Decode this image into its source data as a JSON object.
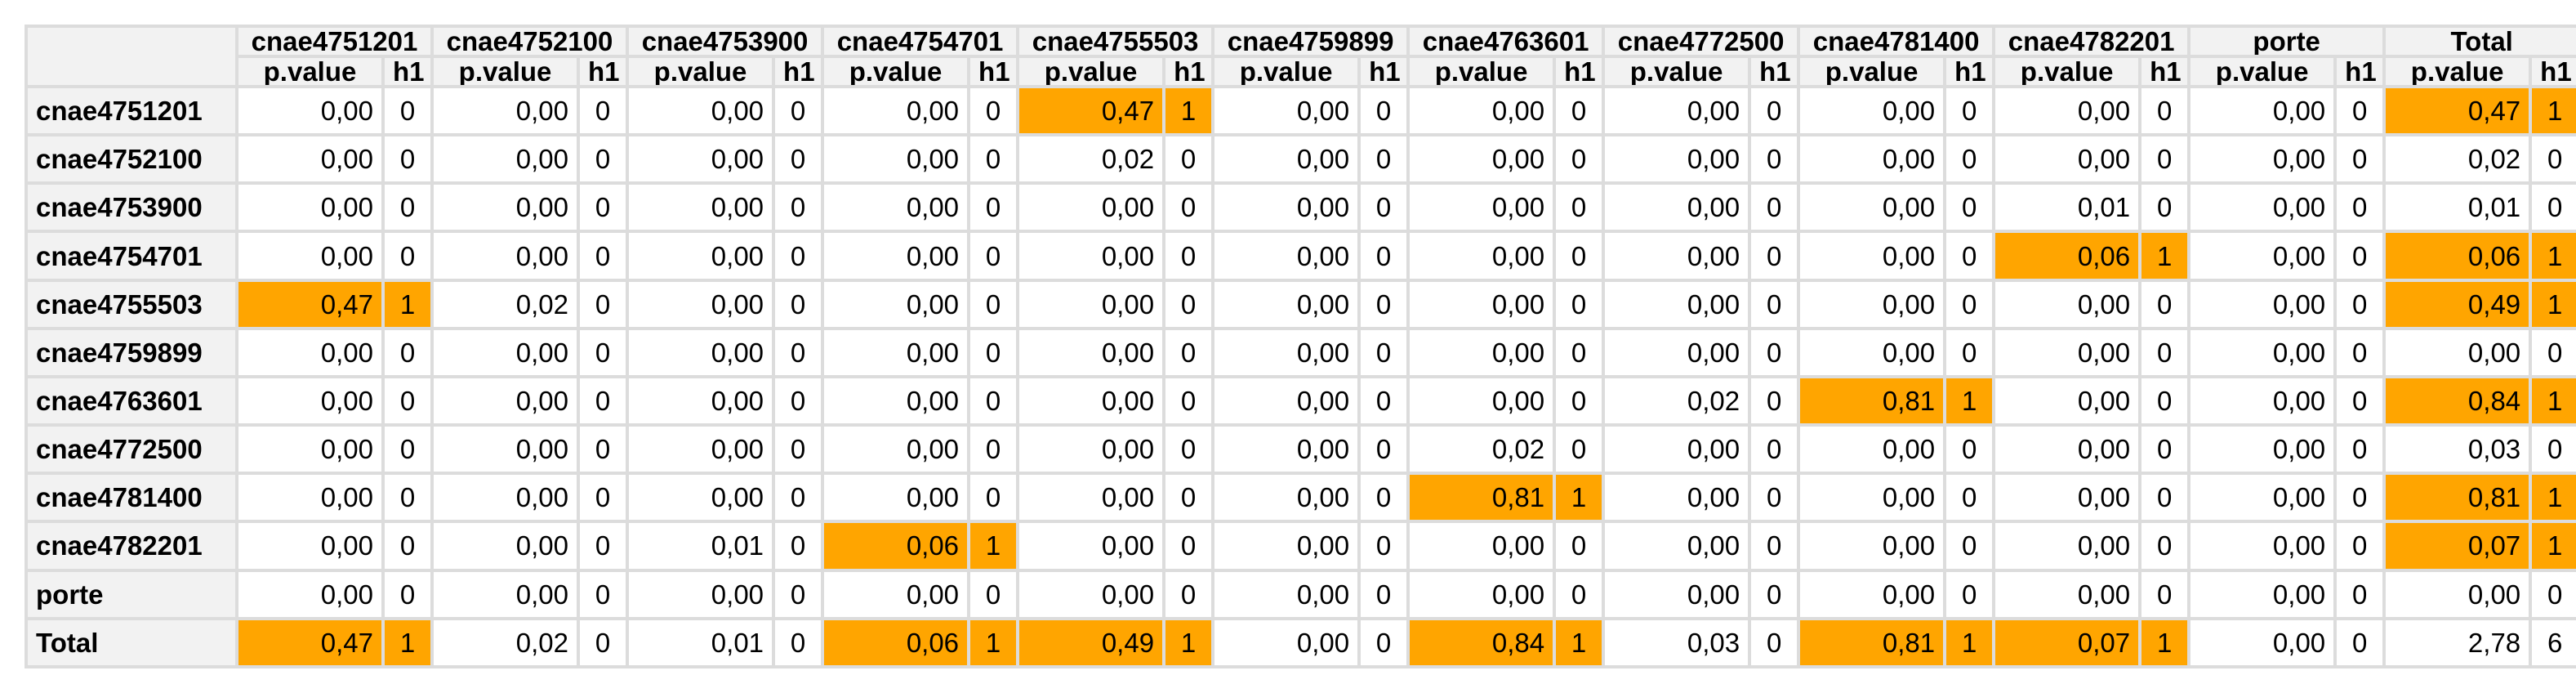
{
  "sub_headers": {
    "p": "p.value",
    "h": "h1"
  },
  "columns": [
    "cnae4751201",
    "cnae4752100",
    "cnae4753900",
    "cnae4754701",
    "cnae4755503",
    "cnae4759899",
    "cnae4763601",
    "cnae4772500",
    "cnae4781400",
    "cnae4782201",
    "porte",
    "Total"
  ],
  "highlight_color": "#ffa500",
  "header_bg": "#f2f2f2",
  "rows": [
    {
      "label": "cnae4751201",
      "cells": [
        [
          "0,00",
          "0"
        ],
        [
          "0,00",
          "0"
        ],
        [
          "0,00",
          "0"
        ],
        [
          "0,00",
          "0"
        ],
        [
          "0,47",
          "1"
        ],
        [
          "0,00",
          "0"
        ],
        [
          "0,00",
          "0"
        ],
        [
          "0,00",
          "0"
        ],
        [
          "0,00",
          "0"
        ],
        [
          "0,00",
          "0"
        ],
        [
          "0,00",
          "0"
        ],
        [
          "0,47",
          "1"
        ]
      ]
    },
    {
      "label": "cnae4752100",
      "cells": [
        [
          "0,00",
          "0"
        ],
        [
          "0,00",
          "0"
        ],
        [
          "0,00",
          "0"
        ],
        [
          "0,00",
          "0"
        ],
        [
          "0,02",
          "0"
        ],
        [
          "0,00",
          "0"
        ],
        [
          "0,00",
          "0"
        ],
        [
          "0,00",
          "0"
        ],
        [
          "0,00",
          "0"
        ],
        [
          "0,00",
          "0"
        ],
        [
          "0,00",
          "0"
        ],
        [
          "0,02",
          "0"
        ]
      ]
    },
    {
      "label": "cnae4753900",
      "cells": [
        [
          "0,00",
          "0"
        ],
        [
          "0,00",
          "0"
        ],
        [
          "0,00",
          "0"
        ],
        [
          "0,00",
          "0"
        ],
        [
          "0,00",
          "0"
        ],
        [
          "0,00",
          "0"
        ],
        [
          "0,00",
          "0"
        ],
        [
          "0,00",
          "0"
        ],
        [
          "0,00",
          "0"
        ],
        [
          "0,01",
          "0"
        ],
        [
          "0,00",
          "0"
        ],
        [
          "0,01",
          "0"
        ]
      ]
    },
    {
      "label": "cnae4754701",
      "cells": [
        [
          "0,00",
          "0"
        ],
        [
          "0,00",
          "0"
        ],
        [
          "0,00",
          "0"
        ],
        [
          "0,00",
          "0"
        ],
        [
          "0,00",
          "0"
        ],
        [
          "0,00",
          "0"
        ],
        [
          "0,00",
          "0"
        ],
        [
          "0,00",
          "0"
        ],
        [
          "0,00",
          "0"
        ],
        [
          "0,06",
          "1"
        ],
        [
          "0,00",
          "0"
        ],
        [
          "0,06",
          "1"
        ]
      ]
    },
    {
      "label": "cnae4755503",
      "cells": [
        [
          "0,47",
          "1"
        ],
        [
          "0,02",
          "0"
        ],
        [
          "0,00",
          "0"
        ],
        [
          "0,00",
          "0"
        ],
        [
          "0,00",
          "0"
        ],
        [
          "0,00",
          "0"
        ],
        [
          "0,00",
          "0"
        ],
        [
          "0,00",
          "0"
        ],
        [
          "0,00",
          "0"
        ],
        [
          "0,00",
          "0"
        ],
        [
          "0,00",
          "0"
        ],
        [
          "0,49",
          "1"
        ]
      ]
    },
    {
      "label": "cnae4759899",
      "cells": [
        [
          "0,00",
          "0"
        ],
        [
          "0,00",
          "0"
        ],
        [
          "0,00",
          "0"
        ],
        [
          "0,00",
          "0"
        ],
        [
          "0,00",
          "0"
        ],
        [
          "0,00",
          "0"
        ],
        [
          "0,00",
          "0"
        ],
        [
          "0,00",
          "0"
        ],
        [
          "0,00",
          "0"
        ],
        [
          "0,00",
          "0"
        ],
        [
          "0,00",
          "0"
        ],
        [
          "0,00",
          "0"
        ]
      ]
    },
    {
      "label": "cnae4763601",
      "cells": [
        [
          "0,00",
          "0"
        ],
        [
          "0,00",
          "0"
        ],
        [
          "0,00",
          "0"
        ],
        [
          "0,00",
          "0"
        ],
        [
          "0,00",
          "0"
        ],
        [
          "0,00",
          "0"
        ],
        [
          "0,00",
          "0"
        ],
        [
          "0,02",
          "0"
        ],
        [
          "0,81",
          "1"
        ],
        [
          "0,00",
          "0"
        ],
        [
          "0,00",
          "0"
        ],
        [
          "0,84",
          "1"
        ]
      ]
    },
    {
      "label": "cnae4772500",
      "cells": [
        [
          "0,00",
          "0"
        ],
        [
          "0,00",
          "0"
        ],
        [
          "0,00",
          "0"
        ],
        [
          "0,00",
          "0"
        ],
        [
          "0,00",
          "0"
        ],
        [
          "0,00",
          "0"
        ],
        [
          "0,02",
          "0"
        ],
        [
          "0,00",
          "0"
        ],
        [
          "0,00",
          "0"
        ],
        [
          "0,00",
          "0"
        ],
        [
          "0,00",
          "0"
        ],
        [
          "0,03",
          "0"
        ]
      ]
    },
    {
      "label": "cnae4781400",
      "cells": [
        [
          "0,00",
          "0"
        ],
        [
          "0,00",
          "0"
        ],
        [
          "0,00",
          "0"
        ],
        [
          "0,00",
          "0"
        ],
        [
          "0,00",
          "0"
        ],
        [
          "0,00",
          "0"
        ],
        [
          "0,81",
          "1"
        ],
        [
          "0,00",
          "0"
        ],
        [
          "0,00",
          "0"
        ],
        [
          "0,00",
          "0"
        ],
        [
          "0,00",
          "0"
        ],
        [
          "0,81",
          "1"
        ]
      ]
    },
    {
      "label": "cnae4782201",
      "cells": [
        [
          "0,00",
          "0"
        ],
        [
          "0,00",
          "0"
        ],
        [
          "0,01",
          "0"
        ],
        [
          "0,06",
          "1"
        ],
        [
          "0,00",
          "0"
        ],
        [
          "0,00",
          "0"
        ],
        [
          "0,00",
          "0"
        ],
        [
          "0,00",
          "0"
        ],
        [
          "0,00",
          "0"
        ],
        [
          "0,00",
          "0"
        ],
        [
          "0,00",
          "0"
        ],
        [
          "0,07",
          "1"
        ]
      ]
    },
    {
      "label": "porte",
      "cells": [
        [
          "0,00",
          "0"
        ],
        [
          "0,00",
          "0"
        ],
        [
          "0,00",
          "0"
        ],
        [
          "0,00",
          "0"
        ],
        [
          "0,00",
          "0"
        ],
        [
          "0,00",
          "0"
        ],
        [
          "0,00",
          "0"
        ],
        [
          "0,00",
          "0"
        ],
        [
          "0,00",
          "0"
        ],
        [
          "0,00",
          "0"
        ],
        [
          "0,00",
          "0"
        ],
        [
          "0,00",
          "0"
        ]
      ]
    },
    {
      "label": "Total",
      "cells": [
        [
          "0,47",
          "1"
        ],
        [
          "0,02",
          "0"
        ],
        [
          "0,01",
          "0"
        ],
        [
          "0,06",
          "1"
        ],
        [
          "0,49",
          "1"
        ],
        [
          "0,00",
          "0"
        ],
        [
          "0,84",
          "1"
        ],
        [
          "0,03",
          "0"
        ],
        [
          "0,81",
          "1"
        ],
        [
          "0,07",
          "1"
        ],
        [
          "0,00",
          "0"
        ],
        [
          "2,78",
          "6"
        ]
      ]
    }
  ]
}
